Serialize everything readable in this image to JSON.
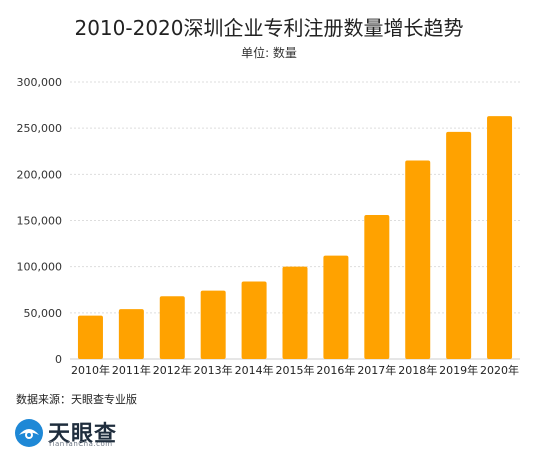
{
  "header": {
    "title": "2010-2020深圳企业专利注册数量增长趋势",
    "subtitle": "单位: 数量"
  },
  "footer": {
    "source": "数据来源：天眼查专业版",
    "logo_name": "天眼查",
    "logo_url": "TianYanCha.com"
  },
  "colors": {
    "bar": "#FFA200",
    "grid": "#dddddd",
    "axis": "#cccccc",
    "logo_blue": "#1e88d6"
  },
  "chart_data": {
    "type": "bar",
    "title": "2010-2020深圳企业专利注册数量增长趋势",
    "subtitle": "单位: 数量",
    "categories": [
      "2010年",
      "2011年",
      "2012年",
      "2013年",
      "2014年",
      "2015年",
      "2016年",
      "2017年",
      "2018年",
      "2019年",
      "2020年"
    ],
    "values": [
      47000,
      54000,
      68000,
      74000,
      84000,
      100000,
      112000,
      156000,
      215000,
      246000,
      263000
    ],
    "yticks": [
      "0",
      "50,000",
      "100,000",
      "150,000",
      "200,000",
      "250,000",
      "300,000"
    ],
    "ylim": [
      0,
      300000
    ],
    "grid": true,
    "legend": "none"
  }
}
